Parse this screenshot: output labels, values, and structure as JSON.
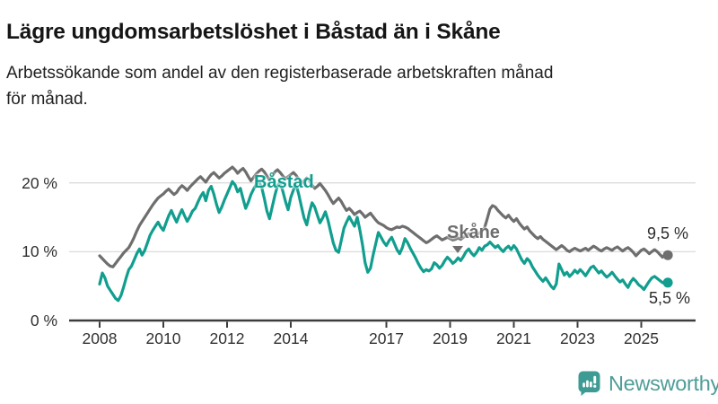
{
  "header": {
    "title": "Lägre ungdomsarbetslöshet i Båstad än i Skåne",
    "subtitle_lines": [
      "Arbetssökande som andel av den registerbaserade arbetskraften månad",
      "för månad."
    ]
  },
  "chart_data": {
    "type": "line",
    "title": "Lägre ungdomsarbetslöshet i Båstad än i Skåne",
    "subtitle": "Arbetssökande som andel av den registerbaserade arbetskraften månad för månad.",
    "x_unit": "month",
    "x_start": "2008-01",
    "x_end": "2025-11",
    "ylim": [
      0,
      24
    ],
    "grid": "horizontal",
    "legend_position": "inline-labels",
    "xticks": [
      {
        "year": 2008,
        "label": "2008"
      },
      {
        "year": 2010,
        "label": "2010"
      },
      {
        "year": 2012,
        "label": "2012"
      },
      {
        "year": 2014,
        "label": "2014"
      },
      {
        "year": 2017,
        "label": "2017"
      },
      {
        "year": 2019,
        "label": "2019"
      },
      {
        "year": 2021,
        "label": "2021"
      },
      {
        "year": 2023,
        "label": "2023"
      },
      {
        "year": 2025,
        "label": "2025"
      }
    ],
    "yticks": [
      {
        "value": 0,
        "label": "0 %"
      },
      {
        "value": 10,
        "label": "10 %"
      },
      {
        "value": 20,
        "label": "20 %"
      }
    ],
    "series": [
      {
        "name": "Skåne",
        "color": "#6E6E6E",
        "end_label": "9,5 %",
        "values": [
          9.4,
          9.0,
          8.6,
          8.2,
          7.9,
          7.8,
          8.3,
          8.8,
          9.3,
          9.8,
          10.2,
          10.6,
          11.3,
          12.1,
          13.0,
          13.8,
          14.4,
          15.0,
          15.6,
          16.2,
          16.8,
          17.3,
          17.8,
          18.1,
          18.4,
          18.8,
          19.1,
          18.7,
          18.3,
          18.6,
          19.2,
          19.6,
          19.3,
          18.9,
          19.4,
          19.8,
          20.2,
          20.6,
          20.9,
          20.5,
          20.1,
          20.7,
          21.2,
          21.5,
          21.1,
          20.7,
          21.0,
          21.4,
          21.7,
          22.0,
          22.3,
          21.9,
          21.4,
          21.8,
          22.1,
          21.6,
          20.9,
          20.3,
          20.8,
          21.3,
          21.7,
          22.0,
          21.6,
          21.0,
          20.4,
          21.0,
          21.6,
          21.9,
          21.5,
          21.0,
          20.6,
          20.9,
          21.2,
          21.5,
          21.1,
          20.5,
          19.9,
          20.3,
          20.7,
          20.3,
          19.7,
          19.2,
          19.5,
          19.9,
          19.4,
          18.9,
          18.3,
          17.6,
          17.0,
          17.4,
          17.8,
          17.3,
          16.6,
          16.0,
          16.3,
          15.9,
          15.4,
          15.7,
          15.9,
          15.5,
          15.0,
          15.3,
          15.6,
          15.1,
          14.6,
          14.2,
          14.0,
          13.8,
          13.5,
          13.3,
          13.2,
          13.4,
          13.6,
          13.5,
          13.7,
          13.6,
          13.4,
          13.1,
          12.8,
          12.5,
          12.2,
          11.9,
          11.6,
          11.3,
          11.5,
          11.8,
          12.1,
          12.3,
          12.0,
          11.7,
          11.9,
          12.1,
          11.9,
          11.7,
          11.8,
          12.0,
          11.8,
          12.1,
          12.4,
          12.6,
          12.3,
          12.1,
          12.4,
          12.7,
          13.0,
          13.5,
          14.8,
          16.2,
          16.7,
          16.5,
          16.0,
          15.6,
          15.2,
          14.9,
          15.3,
          14.8,
          14.4,
          14.8,
          14.2,
          13.7,
          13.3,
          13.6,
          13.0,
          12.6,
          12.2,
          11.9,
          12.2,
          11.8,
          11.5,
          11.2,
          10.9,
          10.6,
          10.3,
          10.6,
          10.9,
          10.6,
          10.2,
          10.0,
          10.3,
          10.5,
          10.3,
          10.1,
          10.3,
          10.5,
          10.2,
          10.5,
          10.8,
          10.6,
          10.3,
          10.1,
          10.4,
          10.6,
          10.4,
          10.2,
          10.5,
          10.7,
          10.4,
          10.1,
          10.4,
          10.6,
          10.3,
          9.9,
          9.4,
          9.8,
          10.2,
          10.4,
          10.1,
          9.7,
          10.0,
          10.3,
          10.0,
          9.6,
          9.2,
          9.6,
          9.5
        ]
      },
      {
        "name": "Båstad",
        "color": "#119E8F",
        "end_label": "5,5 %",
        "values": [
          5.3,
          6.9,
          6.2,
          5.0,
          4.4,
          3.8,
          3.2,
          2.9,
          3.6,
          4.8,
          6.2,
          7.4,
          7.9,
          8.8,
          9.7,
          10.4,
          9.5,
          10.2,
          11.3,
          12.4,
          13.1,
          13.7,
          14.3,
          13.6,
          13.1,
          14.2,
          15.2,
          16.0,
          15.1,
          14.3,
          15.3,
          16.1,
          15.2,
          14.4,
          15.1,
          15.9,
          16.3,
          17.2,
          18.0,
          18.6,
          17.4,
          18.9,
          19.5,
          18.4,
          16.9,
          15.7,
          16.5,
          17.5,
          18.4,
          19.3,
          20.2,
          19.7,
          18.7,
          19.2,
          17.7,
          16.3,
          17.2,
          18.3,
          19.1,
          19.8,
          20.1,
          19.4,
          17.8,
          15.9,
          14.8,
          16.5,
          18.2,
          19.6,
          20.0,
          18.8,
          17.3,
          16.1,
          17.9,
          19.0,
          19.8,
          18.3,
          16.6,
          14.9,
          13.9,
          15.7,
          17.1,
          16.5,
          15.3,
          14.2,
          14.9,
          15.8,
          14.6,
          12.9,
          11.3,
          10.2,
          9.9,
          11.6,
          13.4,
          14.3,
          15.1,
          14.4,
          13.7,
          15.0,
          13.2,
          11.0,
          8.4,
          7.0,
          7.6,
          9.5,
          11.2,
          12.8,
          12.1,
          11.4,
          10.9,
          11.6,
          12.1,
          11.2,
          10.3,
          9.7,
          10.6,
          11.9,
          11.3,
          10.5,
          9.8,
          9.1,
          8.3,
          7.6,
          7.1,
          7.4,
          7.2,
          7.5,
          8.4,
          8.1,
          7.6,
          8.0,
          8.7,
          9.2,
          8.8,
          8.3,
          8.6,
          9.1,
          8.7,
          9.3,
          10.0,
          10.4,
          9.8,
          9.4,
          9.9,
          10.6,
          10.2,
          10.8,
          11.0,
          11.4,
          11.0,
          10.6,
          10.9,
          10.4,
          10.0,
          10.5,
          10.8,
          10.3,
          10.9,
          10.4,
          9.6,
          8.8,
          8.3,
          9.0,
          8.6,
          7.8,
          7.2,
          6.6,
          6.1,
          5.7,
          6.2,
          5.6,
          5.0,
          4.6,
          5.3,
          8.2,
          7.4,
          6.6,
          7.0,
          6.4,
          6.8,
          7.3,
          6.9,
          7.4,
          7.0,
          6.5,
          7.1,
          7.7,
          7.9,
          7.4,
          6.9,
          7.2,
          6.7,
          6.3,
          6.6,
          7.0,
          6.5,
          6.0,
          5.6,
          5.9,
          5.3,
          4.8,
          5.6,
          6.1,
          5.7,
          5.2,
          4.9,
          4.5,
          5.1,
          5.7,
          6.2,
          6.4,
          6.1,
          5.8,
          5.5,
          5.4,
          5.5
        ]
      }
    ]
  },
  "logo": {
    "text": "Newsworthy",
    "icon": "newsworthy-bar-chart-bubble-icon",
    "text_color": "#4F9D98",
    "icon_color": "#3D9B93"
  }
}
